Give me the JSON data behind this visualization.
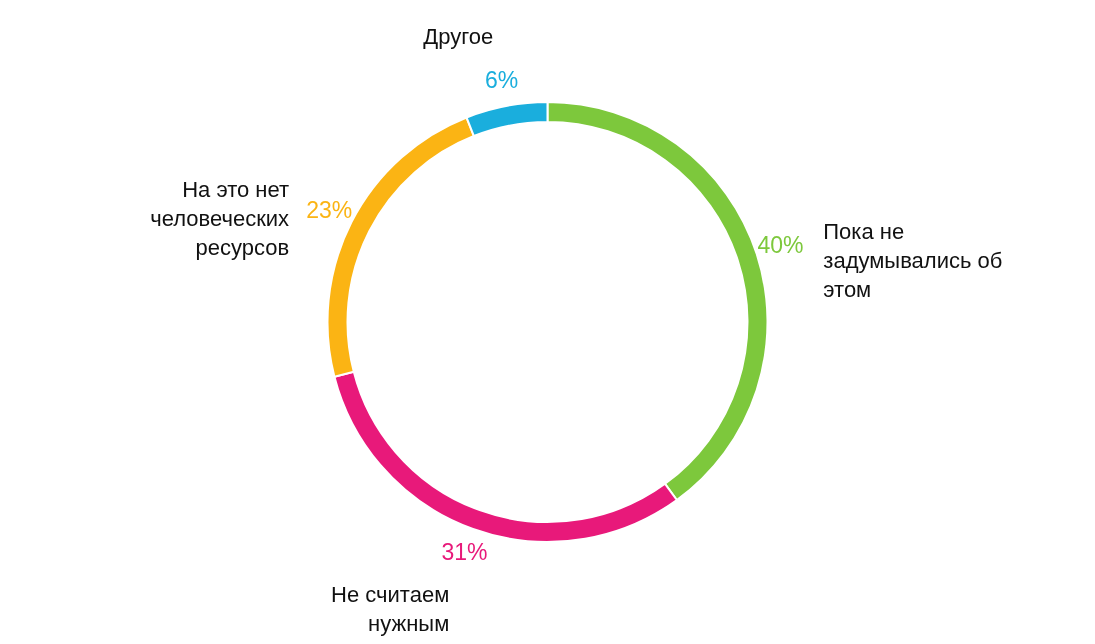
{
  "chart_data": {
    "type": "donut",
    "categories": [
      "Пока не задумывались об этом",
      "Не считаем нужным",
      "На это нет человеческих ресурсов",
      "Другое"
    ],
    "values": [
      40,
      31,
      23,
      6
    ],
    "colors": [
      "#7dc83c",
      "#e8197a",
      "#fbb414",
      "#1aaedd"
    ],
    "value_labels": [
      "40%",
      "31%",
      "23%",
      "6%"
    ]
  }
}
